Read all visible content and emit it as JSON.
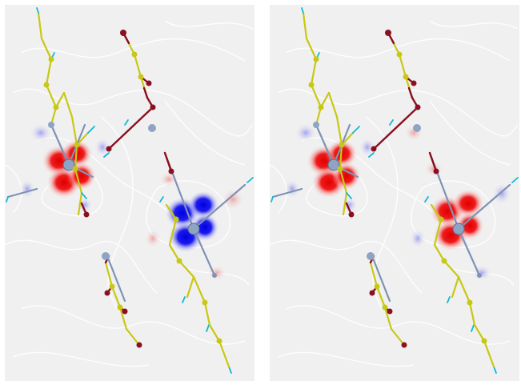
{
  "figure": {
    "description_free": true,
    "panel_count": 2
  },
  "colors": {
    "background": "#f0f0f0",
    "contour": "#ffffff",
    "positive_lobe": "#e00000",
    "negative_lobe": "#0000e0",
    "carbon_bond": "#c8c814",
    "oxygen_atom": "#8a1020",
    "nitrogen_bond": "#7f93b3",
    "hydrogen_tip": "#12b8d8",
    "metal_atom": "#8fa3c4"
  },
  "panels": [
    {
      "id": "left",
      "orbital_lobes": [
        {
          "name": "upper-left-center",
          "sign": "positive"
        },
        {
          "name": "lower-right-center",
          "sign": "negative"
        }
      ]
    },
    {
      "id": "right",
      "orbital_lobes": [
        {
          "name": "upper-left-center",
          "sign": "positive"
        },
        {
          "name": "lower-right-center",
          "sign": "positive"
        }
      ]
    }
  ]
}
